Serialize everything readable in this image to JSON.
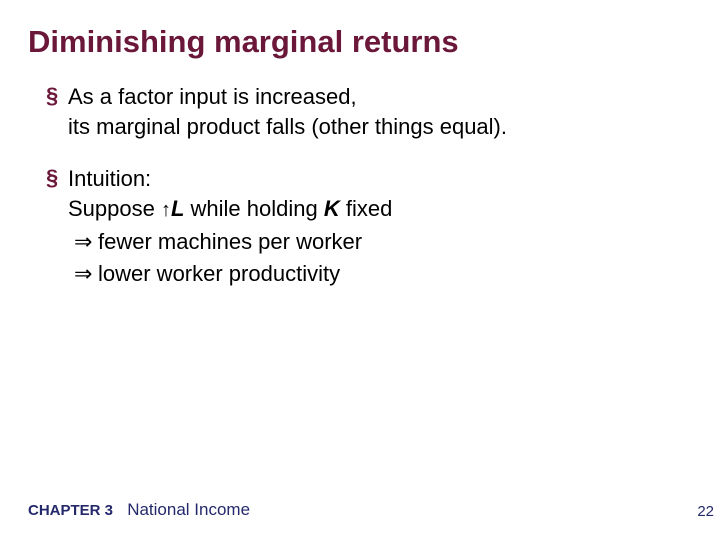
{
  "title": "Diminishing marginal returns",
  "title_color": "#6a173a",
  "bullet_marker": "§",
  "bullet_marker_color": "#6a173a",
  "body_color": "#000000",
  "body_fontsize_pt": 22,
  "title_fontsize_pt": 31,
  "background_color": "#ffffff",
  "footer_color": "#24296b",
  "bullets": [
    {
      "line1": "As a factor input is increased,",
      "line2": "its marginal product falls (other things equal)."
    },
    {
      "line1": "Intuition:",
      "line2_prefix": "Suppose ",
      "line2_arrow": "↑",
      "line2_var1": "L",
      "line2_mid": "  while holding ",
      "line2_var2": "K",
      "line2_suffix": " fixed",
      "sub_arrow": "⇒",
      "sub1": "fewer machines per worker",
      "sub2": "lower worker productivity"
    }
  ],
  "footer": {
    "chapter": "CHAPTER 3",
    "title": "National Income"
  },
  "page_number": "22"
}
